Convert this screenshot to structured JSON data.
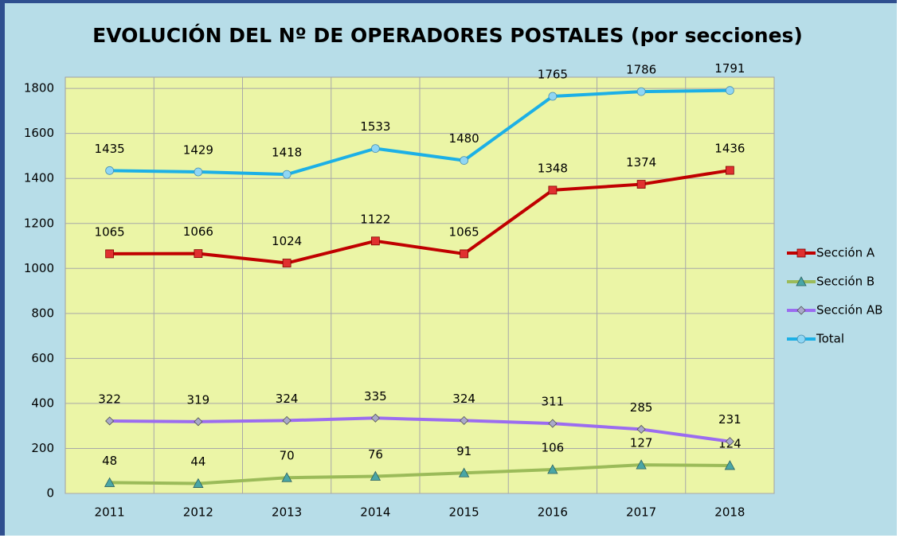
{
  "chart_data": {
    "type": "line",
    "title": "EVOLUCIÓN DEL Nº DE OPERADORES POSTALES (por secciones)",
    "categories": [
      "2011",
      "2012",
      "2013",
      "2014",
      "2015",
      "2016",
      "2017",
      "2018"
    ],
    "series": [
      {
        "name": "Sección A",
        "color": "#c00000",
        "marker": "square",
        "values": [
          1065,
          1066,
          1024,
          1122,
          1065,
          1348,
          1374,
          1436
        ]
      },
      {
        "name": "Sección B",
        "color": "#9bbb59",
        "marker": "triangle",
        "values": [
          48,
          44,
          70,
          76,
          91,
          106,
          127,
          124
        ]
      },
      {
        "name": "Sección AB",
        "color": "#9b6cf0",
        "marker": "diamond",
        "values": [
          322,
          319,
          324,
          335,
          324,
          311,
          285,
          231
        ]
      },
      {
        "name": "Total",
        "color": "#1cb0e6",
        "marker": "circle",
        "values": [
          1435,
          1429,
          1418,
          1533,
          1480,
          1765,
          1786,
          1791
        ]
      }
    ],
    "ylim": [
      0,
      1850
    ],
    "yticks": [
      0,
      200,
      400,
      600,
      800,
      1000,
      1200,
      1400,
      1600,
      1800
    ],
    "grid": true,
    "legend": "right"
  }
}
